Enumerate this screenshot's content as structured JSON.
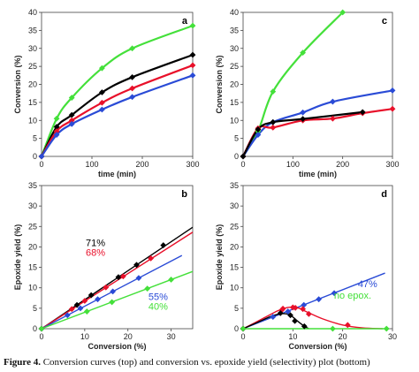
{
  "colors": {
    "black": "#000000",
    "red": "#e8102a",
    "blue": "#2a4bd6",
    "green": "#44e03a"
  },
  "caption": {
    "label": "Figure 4.",
    "text": "Conversion curves (top) and conversion vs.  epoxide yield (selectivity) plot (bottom)"
  },
  "chart_data": [
    {
      "id": "a",
      "type": "line",
      "panel_label": "a",
      "xlabel": "time (min)",
      "ylabel": "Conversion (%)",
      "xlim": [
        0,
        300
      ],
      "ylim": [
        0,
        40
      ],
      "xticks": [
        0,
        100,
        200,
        300
      ],
      "yticks": [
        0,
        5,
        10,
        15,
        20,
        25,
        30,
        35,
        40
      ],
      "series": [
        {
          "color": "green",
          "x": [
            0,
            30,
            60,
            120,
            180,
            300
          ],
          "y": [
            0,
            10.5,
            16.3,
            24.5,
            30,
            36.3
          ]
        },
        {
          "color": "black",
          "x": [
            0,
            30,
            60,
            120,
            180,
            300
          ],
          "y": [
            0,
            8.2,
            11.5,
            17.8,
            22,
            28.2
          ]
        },
        {
          "color": "red",
          "x": [
            0,
            30,
            60,
            120,
            180,
            300
          ],
          "y": [
            0,
            7,
            10,
            14.9,
            18.9,
            25.3
          ]
        },
        {
          "color": "blue",
          "x": [
            0,
            30,
            60,
            120,
            180,
            300
          ],
          "y": [
            0,
            6,
            9,
            13,
            16.5,
            22.5
          ]
        }
      ]
    },
    {
      "id": "c",
      "type": "line",
      "panel_label": "c",
      "xlabel": "time (min)",
      "ylabel": "Conversion (%)",
      "xlim": [
        0,
        300
      ],
      "ylim": [
        0,
        40
      ],
      "xticks": [
        0,
        100,
        200,
        300
      ],
      "yticks": [
        0,
        5,
        10,
        15,
        20,
        25,
        30,
        35,
        40
      ],
      "series": [
        {
          "color": "green",
          "x": [
            0,
            30,
            60,
            120,
            200
          ],
          "y": [
            0,
            7,
            18,
            28.8,
            40
          ]
        },
        {
          "color": "blue",
          "x": [
            0,
            30,
            60,
            120,
            180,
            300
          ],
          "y": [
            0,
            6,
            9.5,
            12.2,
            15.2,
            18.3
          ]
        },
        {
          "color": "red",
          "x": [
            0,
            30,
            60,
            120,
            180,
            240,
            300
          ],
          "y": [
            0,
            7.8,
            8,
            10,
            10.5,
            12,
            13.2
          ]
        },
        {
          "color": "black",
          "x": [
            0,
            30,
            60,
            120,
            240
          ],
          "y": [
            0,
            7.5,
            9.5,
            10.4,
            12.3
          ]
        }
      ]
    },
    {
      "id": "b",
      "type": "scatter",
      "panel_label": "b",
      "xlabel": "Conversion (%)",
      "ylabel": "Epoxide yield (%)",
      "xlim": [
        0,
        35
      ],
      "ylim": [
        0,
        35
      ],
      "xticks": [
        0,
        10,
        20,
        30
      ],
      "yticks": [
        0,
        5,
        10,
        15,
        20,
        25,
        30,
        35
      ],
      "series": [
        {
          "color": "black",
          "x": [
            0,
            8.2,
            11.5,
            17.8,
            22,
            28.2
          ],
          "y": [
            0,
            5.8,
            8.2,
            12.6,
            15.6,
            20.4
          ],
          "fit": [
            [
              0,
              0
            ],
            [
              35,
              24.8
            ]
          ]
        },
        {
          "color": "red",
          "x": [
            0,
            7,
            10,
            14.9,
            18.9,
            25.3
          ],
          "y": [
            0,
            4.8,
            6.8,
            10.1,
            12.8,
            17.2
          ],
          "fit": [
            [
              0,
              0
            ],
            [
              35,
              23.6
            ]
          ]
        },
        {
          "color": "blue",
          "x": [
            0,
            6,
            9,
            13,
            16.5,
            22.5
          ],
          "y": [
            0,
            3.3,
            5,
            7.2,
            9.1,
            12.4
          ],
          "fit": [
            [
              0,
              0
            ],
            [
              32.5,
              17.9
            ]
          ]
        },
        {
          "color": "green",
          "x": [
            0,
            10.5,
            16.3,
            24.5,
            30
          ],
          "y": [
            0,
            4.2,
            6.5,
            9.8,
            12
          ],
          "fit": [
            [
              0,
              0
            ],
            [
              35,
              14
            ]
          ]
        }
      ],
      "annotations": [
        {
          "text": "71%",
          "color": "black",
          "x": 12.5,
          "y": 20.2
        },
        {
          "text": "68%",
          "color": "red",
          "x": 12.5,
          "y": 17.8
        },
        {
          "text": "55%",
          "color": "blue",
          "x": 27,
          "y": 7
        },
        {
          "text": "40%",
          "color": "green",
          "x": 27,
          "y": 4.6
        }
      ]
    },
    {
      "id": "d",
      "type": "scatter",
      "panel_label": "d",
      "xlabel": "Conversion (%)",
      "ylabel": "Epoxide yield (%)",
      "xlim": [
        0,
        30
      ],
      "ylim": [
        0,
        35
      ],
      "xticks": [
        0,
        10,
        20,
        30
      ],
      "yticks": [
        0,
        5,
        10,
        15,
        20,
        25,
        30,
        35
      ],
      "series": [
        {
          "color": "blue",
          "x": [
            0,
            6,
            9,
            12.2,
            15.2,
            18.3
          ],
          "y": [
            0,
            2.9,
            4.2,
            5.8,
            7.2,
            8.7
          ],
          "fit": [
            [
              0,
              0
            ],
            [
              28.5,
              13.6
            ]
          ]
        },
        {
          "color": "red",
          "x": [
            0,
            7.8,
            8,
            10,
            10.5,
            12,
            13.2,
            21
          ],
          "y": [
            0,
            4.6,
            4.9,
            5.2,
            5.1,
            4.8,
            3.6,
            0.9
          ],
          "curve": [
            [
              0,
              0
            ],
            [
              4,
              2.5
            ],
            [
              7,
              4.4
            ],
            [
              9,
              5.2
            ],
            [
              11,
              5.1
            ],
            [
              13,
              4
            ],
            [
              16,
              2.4
            ],
            [
              20,
              0.9
            ],
            [
              24,
              0.2
            ],
            [
              28,
              0
            ]
          ]
        },
        {
          "color": "black",
          "x": [
            0,
            7.5,
            9.5,
            10.4,
            12.3
          ],
          "y": [
            0,
            3.8,
            3.3,
            1.9,
            0.6
          ],
          "curve": [
            [
              0,
              0
            ],
            [
              3,
              1.6
            ],
            [
              6,
              3.2
            ],
            [
              8,
              3.7
            ],
            [
              9.5,
              3.3
            ],
            [
              11,
              1.8
            ],
            [
              12.3,
              0.6
            ],
            [
              13.2,
              0
            ]
          ]
        },
        {
          "color": "green",
          "x": [
            0,
            18,
            28.8
          ],
          "y": [
            0,
            0,
            0
          ],
          "fit": [
            [
              0,
              0
            ],
            [
              29,
              0
            ]
          ]
        }
      ],
      "annotations": [
        {
          "text": "47%",
          "color": "blue",
          "x": 25,
          "y": 10.2
        },
        {
          "text": "no epox.",
          "color": "green",
          "x": 22,
          "y": 7.3
        }
      ]
    }
  ]
}
